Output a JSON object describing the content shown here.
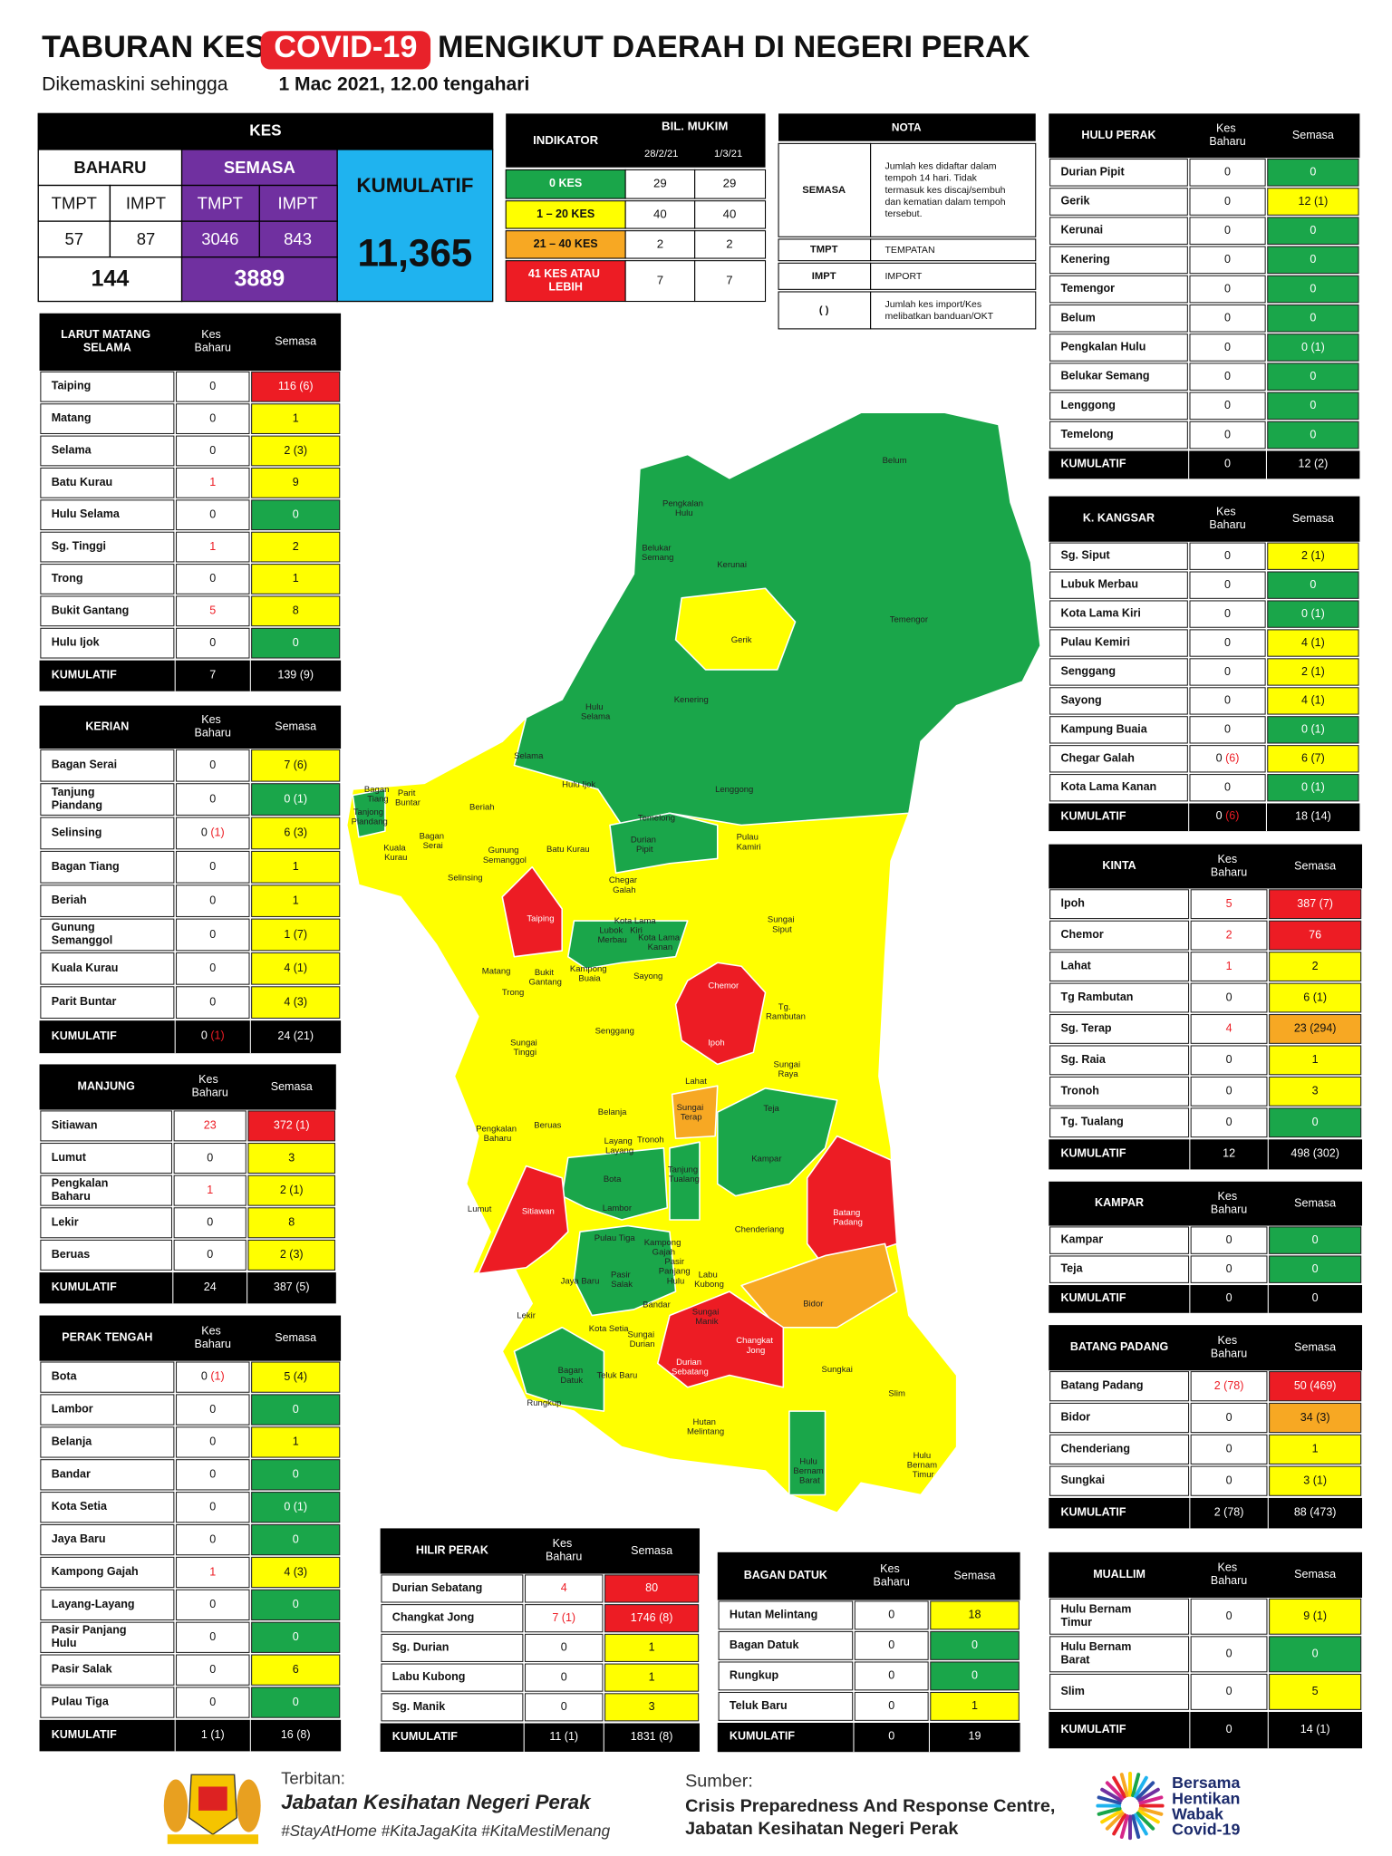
{
  "header": {
    "title": [
      "TABURAN KES",
      "COVID-19",
      "MENGIKUT DAERAH DI NEGERI PERAK"
    ],
    "subtitle": [
      "Dikemaskini sehingga",
      "1 Mac 2021, 12.00 tengahari"
    ]
  },
  "kes": {
    "title": "KES",
    "baharu": "BAHARU",
    "semasa": "SEMASA",
    "kumulatif": "KUMULATIF",
    "sub": [
      "TMPT",
      "IMPT",
      "TMPT",
      "IMPT"
    ],
    "values": [
      57,
      87,
      3046,
      843
    ],
    "baharu_total": 144,
    "semasa_total": 3889,
    "kumulatif_total": "11,365"
  },
  "indikator": {
    "headers": [
      "INDIKATOR",
      "BIL. MUKIM",
      "28/2/21",
      "1/3/21"
    ],
    "rows": [
      {
        "label": "0 KES",
        "color": "#1aa64a",
        "values": [
          29,
          29
        ]
      },
      {
        "label": "1 – 20 KES",
        "color": "#ffff00",
        "values": [
          40,
          40
        ]
      },
      {
        "label": "21 – 40 KES",
        "color": "#f7a823",
        "values": [
          2,
          2
        ]
      },
      {
        "label": "41 KES ATAU LEBIH",
        "color": "#ed1c24",
        "values": [
          7,
          7
        ]
      }
    ]
  },
  "nota": {
    "title": "NOTA",
    "rows": [
      [
        "SEMASA",
        "Jumlah kes didaftar dalam tempoh 14 hari. Tidak termasuk kes discaj/sembuh dan kematian dalam tempoh tersebut."
      ],
      [
        "TMPT",
        "TEMPATAN"
      ],
      [
        "IMPT",
        "IMPORT"
      ],
      [
        "( )",
        "Jumlah kes import/Kes melibatkan banduan/OKT"
      ]
    ]
  },
  "districts": [
    {
      "name": "LARUT MATANG SELAMA",
      "columns": [
        "Kes Baharu",
        "Semasa"
      ],
      "rows": [
        {
          "name": "Taiping",
          "baharu": "0",
          "semasa": "116 (6)",
          "color": "#ed1c24"
        },
        {
          "name": "Matang",
          "baharu": "0",
          "semasa": "1",
          "color": "#ffff00"
        },
        {
          "name": "Selama",
          "baharu": "0",
          "semasa": "2 (3)",
          "color": "#ffff00"
        },
        {
          "name": "Batu Kurau",
          "baharu": "1",
          "semasa": "9",
          "color": "#ffff00"
        },
        {
          "name": "Hulu Selama",
          "baharu": "0",
          "semasa": "0",
          "color": "#1aa64a"
        },
        {
          "name": "Sg. Tinggi",
          "baharu": "1",
          "semasa": "2",
          "color": "#ffff00"
        },
        {
          "name": "Trong",
          "baharu": "0",
          "semasa": "1",
          "color": "#ffff00"
        },
        {
          "name": "Bukit Gantang",
          "baharu": "5",
          "semasa": "8",
          "color": "#ffff00"
        },
        {
          "name": "Hulu Ijok",
          "baharu": "0",
          "semasa": "0",
          "color": "#1aa64a"
        }
      ],
      "total": {
        "label": "KUMULATIF",
        "baharu": "7",
        "semasa": "139 (9)"
      }
    },
    {
      "name": "KERIAN",
      "columns": [
        "Kes Baharu",
        "Semasa"
      ],
      "rows": [
        {
          "name": "Bagan Serai",
          "baharu": "0",
          "semasa": "7 (6)",
          "color": "#ffff00"
        },
        {
          "name": "Tanjung Piandang",
          "baharu": "0",
          "semasa": "0 (1)",
          "color": "#1aa64a"
        },
        {
          "name": "Selinsing",
          "baharu": "0 (1)",
          "semasa": "6 (3)",
          "color": "#ffff00"
        },
        {
          "name": "Bagan Tiang",
          "baharu": "0",
          "semasa": "1",
          "color": "#ffff00"
        },
        {
          "name": "Beriah",
          "baharu": "0",
          "semasa": "1",
          "color": "#ffff00"
        },
        {
          "name": "Gunung Semanggol",
          "baharu": "0",
          "semasa": "1 (7)",
          "color": "#ffff00"
        },
        {
          "name": "Kuala Kurau",
          "baharu": "0",
          "semasa": "4 (1)",
          "color": "#ffff00"
        },
        {
          "name": "Parit Buntar",
          "baharu": "0",
          "semasa": "4 (3)",
          "color": "#ffff00"
        }
      ],
      "total": {
        "label": "KUMULATIF",
        "baharu": "0 (1)",
        "semasa": "24 (21)"
      }
    },
    {
      "name": "MANJUNG",
      "columns": [
        "Kes Baharu",
        "Semasa"
      ],
      "rows": [
        {
          "name": "Sitiawan",
          "baharu": "23",
          "semasa": "372 (1)",
          "color": "#ed1c24"
        },
        {
          "name": "Lumut",
          "baharu": "0",
          "semasa": "3",
          "color": "#ffff00"
        },
        {
          "name": "Pengkalan Baharu",
          "baharu": "1",
          "semasa": "2 (1)",
          "color": "#ffff00"
        },
        {
          "name": "Lekir",
          "baharu": "0",
          "semasa": "8",
          "color": "#ffff00"
        },
        {
          "name": "Beruas",
          "baharu": "0",
          "semasa": "2 (3)",
          "color": "#ffff00"
        }
      ],
      "total": {
        "label": "KUMULATIF",
        "baharu": "24",
        "semasa": "387 (5)"
      }
    },
    {
      "name": "PERAK TENGAH",
      "columns": [
        "Kes Baharu",
        "Semasa"
      ],
      "rows": [
        {
          "name": "Bota",
          "baharu": "0 (1)",
          "semasa": "5 (4)",
          "color": "#ffff00"
        },
        {
          "name": "Lambor",
          "baharu": "0",
          "semasa": "0",
          "color": "#1aa64a"
        },
        {
          "name": "Belanja",
          "baharu": "0",
          "semasa": "1",
          "color": "#ffff00"
        },
        {
          "name": "Bandar",
          "baharu": "0",
          "semasa": "0",
          "color": "#1aa64a"
        },
        {
          "name": "Kota Setia",
          "baharu": "0",
          "semasa": "0 (1)",
          "color": "#1aa64a"
        },
        {
          "name": "Jaya Baru",
          "baharu": "0",
          "semasa": "0",
          "color": "#1aa64a"
        },
        {
          "name": "Kampong Gajah",
          "baharu": "1",
          "semasa": "4 (3)",
          "color": "#ffff00"
        },
        {
          "name": "Layang-Layang",
          "baharu": "0",
          "semasa": "0",
          "color": "#1aa64a"
        },
        {
          "name": "Pasir Panjang Hulu",
          "baharu": "0",
          "semasa": "0",
          "color": "#1aa64a"
        },
        {
          "name": "Pasir Salak",
          "baharu": "0",
          "semasa": "6",
          "color": "#ffff00"
        },
        {
          "name": "Pulau Tiga",
          "baharu": "0",
          "semasa": "0",
          "color": "#1aa64a"
        }
      ],
      "total": {
        "label": "KUMULATIF",
        "baharu": "1 (1)",
        "semasa": "16 (8)"
      }
    },
    {
      "name": "HULU PERAK",
      "columns": [
        "Kes Baharu",
        "Semasa"
      ],
      "rows": [
        {
          "name": "Durian Pipit",
          "baharu": "0",
          "semasa": "0",
          "color": "#1aa64a"
        },
        {
          "name": "Gerik",
          "baharu": "0",
          "semasa": "12 (1)",
          "color": "#ffff00"
        },
        {
          "name": "Kerunai",
          "baharu": "0",
          "semasa": "0",
          "color": "#1aa64a"
        },
        {
          "name": "Kenering",
          "baharu": "0",
          "semasa": "0",
          "color": "#1aa64a"
        },
        {
          "name": "Temengor",
          "baharu": "0",
          "semasa": "0",
          "color": "#1aa64a"
        },
        {
          "name": "Belum",
          "baharu": "0",
          "semasa": "0",
          "color": "#1aa64a"
        },
        {
          "name": "Pengkalan Hulu",
          "baharu": "0",
          "semasa": "0 (1)",
          "color": "#1aa64a"
        },
        {
          "name": "Belukar Semang",
          "baharu": "0",
          "semasa": "0",
          "color": "#1aa64a"
        },
        {
          "name": "Lenggong",
          "baharu": "0",
          "semasa": "0",
          "color": "#1aa64a"
        },
        {
          "name": "Temelong",
          "baharu": "0",
          "semasa": "0",
          "color": "#1aa64a"
        }
      ],
      "total": {
        "label": "KUMULATIF",
        "baharu": "0",
        "semasa": "12 (2)"
      }
    },
    {
      "name": "K. KANGSAR",
      "columns": [
        "Kes Baharu",
        "Semasa"
      ],
      "rows": [
        {
          "name": "Sg. Siput",
          "baharu": "0",
          "semasa": "2 (1)",
          "color": "#ffff00"
        },
        {
          "name": "Lubuk Merbau",
          "baharu": "0",
          "semasa": "0",
          "color": "#1aa64a"
        },
        {
          "name": "Kota Lama Kiri",
          "baharu": "0",
          "semasa": "0 (1)",
          "color": "#1aa64a"
        },
        {
          "name": "Pulau Kemiri",
          "baharu": "0",
          "semasa": "4 (1)",
          "color": "#ffff00"
        },
        {
          "name": "Senggang",
          "baharu": "0",
          "semasa": "2 (1)",
          "color": "#ffff00"
        },
        {
          "name": "Sayong",
          "baharu": "0",
          "semasa": "4 (1)",
          "color": "#ffff00"
        },
        {
          "name": "Kampung Buaia",
          "baharu": "0",
          "semasa": "0 (1)",
          "color": "#1aa64a"
        },
        {
          "name": "Chegar Galah",
          "baharu": "0 (6)",
          "semasa": "6 (7)",
          "color": "#ffff00"
        },
        {
          "name": "Kota Lama Kanan",
          "baharu": "0",
          "semasa": "0 (1)",
          "color": "#1aa64a"
        }
      ],
      "total": {
        "label": "KUMULATIF",
        "baharu": "0 (6)",
        "semasa": "18 (14)"
      }
    },
    {
      "name": "KINTA",
      "columns": [
        "Kes Baharu",
        "Semasa"
      ],
      "rows": [
        {
          "name": "Ipoh",
          "baharu": "5",
          "semasa": "387 (7)",
          "color": "#ed1c24"
        },
        {
          "name": "Chemor",
          "baharu": "2",
          "semasa": "76",
          "color": "#ed1c24"
        },
        {
          "name": "Lahat",
          "baharu": "1",
          "semasa": "2",
          "color": "#ffff00"
        },
        {
          "name": "Tg Rambutan",
          "baharu": "0",
          "semasa": "6 (1)",
          "color": "#ffff00"
        },
        {
          "name": "Sg. Terap",
          "baharu": "4",
          "semasa": "23 (294)",
          "color": "#f7a823"
        },
        {
          "name": "Sg. Raia",
          "baharu": "0",
          "semasa": "1",
          "color": "#ffff00"
        },
        {
          "name": "Tronoh",
          "baharu": "0",
          "semasa": "3",
          "color": "#ffff00"
        },
        {
          "name": "Tg. Tualang",
          "baharu": "0",
          "semasa": "0",
          "color": "#1aa64a"
        }
      ],
      "total": {
        "label": "KUMULATIF",
        "baharu": "12",
        "semasa": "498 (302)"
      }
    },
    {
      "name": "KAMPAR",
      "columns": [
        "Kes Baharu",
        "Semasa"
      ],
      "rows": [
        {
          "name": "Kampar",
          "baharu": "0",
          "semasa": "0",
          "color": "#1aa64a"
        },
        {
          "name": "Teja",
          "baharu": "0",
          "semasa": "0",
          "color": "#1aa64a"
        }
      ],
      "total": {
        "label": "KUMULATIF",
        "baharu": "0",
        "semasa": "0"
      }
    },
    {
      "name": "BATANG PADANG",
      "columns": [
        "Kes Baharu",
        "Semasa"
      ],
      "rows": [
        {
          "name": "Batang Padang",
          "baharu": "2 (78)",
          "semasa": "50 (469)",
          "color": "#ed1c24"
        },
        {
          "name": "Bidor",
          "baharu": "0",
          "semasa": "34 (3)",
          "color": "#f7a823"
        },
        {
          "name": "Chenderiang",
          "baharu": "0",
          "semasa": "1",
          "color": "#ffff00"
        },
        {
          "name": "Sungkai",
          "baharu": "0",
          "semasa": "3 (1)",
          "color": "#ffff00"
        }
      ],
      "total": {
        "label": "KUMULATIF",
        "baharu": "2 (78)",
        "semasa": "88 (473)"
      }
    },
    {
      "name": "MUALLIM",
      "columns": [
        "Kes Baharu",
        "Semasa"
      ],
      "rows": [
        {
          "name": "Hulu Bernam Timur",
          "baharu": "0",
          "semasa": "9 (1)",
          "color": "#ffff00"
        },
        {
          "name": "Hulu Bernam Barat",
          "baharu": "0",
          "semasa": "0",
          "color": "#1aa64a"
        },
        {
          "name": "Slim",
          "baharu": "0",
          "semasa": "5",
          "color": "#ffff00"
        }
      ],
      "total": {
        "label": "KUMULATIF",
        "baharu": "0",
        "semasa": "14 (1)"
      }
    },
    {
      "name": "HILIR PERAK",
      "columns": [
        "Kes Baharu",
        "Semasa"
      ],
      "rows": [
        {
          "name": "Durian Sebatang",
          "baharu": "4",
          "semasa": "80",
          "color": "#ed1c24"
        },
        {
          "name": "Changkat Jong",
          "baharu": "7 (1)",
          "semasa": "1746 (8)",
          "color": "#ed1c24"
        },
        {
          "name": "Sg. Durian",
          "baharu": "0",
          "semasa": "1",
          "color": "#ffff00"
        },
        {
          "name": "Labu Kubong",
          "baharu": "0",
          "semasa": "1",
          "color": "#ffff00"
        },
        {
          "name": "Sg. Manik",
          "baharu": "0",
          "semasa": "3",
          "color": "#ffff00"
        }
      ],
      "total": {
        "label": "KUMULATIF",
        "baharu": "11 (1)",
        "semasa": "1831 (8)"
      }
    },
    {
      "name": "BAGAN DATUK",
      "columns": [
        "Kes Baharu",
        "Semasa"
      ],
      "rows": [
        {
          "name": "Hutan Melintang",
          "baharu": "0",
          "semasa": "18",
          "color": "#ffff00"
        },
        {
          "name": "Bagan Datuk",
          "baharu": "0",
          "semasa": "0",
          "color": "#1aa64a"
        },
        {
          "name": "Rungkup",
          "baharu": "0",
          "semasa": "0",
          "color": "#1aa64a"
        },
        {
          "name": "Teluk Baru",
          "baharu": "0",
          "semasa": "1",
          "color": "#ffff00"
        }
      ],
      "total": {
        "label": "KUMULATIF",
        "baharu": "0",
        "semasa": "19"
      }
    }
  ],
  "map": {
    "labels": [
      "Belum",
      "Pengkalan Hulu",
      "Belukar Semang",
      "Kerunai",
      "Temengor",
      "Gerik",
      "Hulu Selama",
      "Kenering",
      "Selama",
      "Hulu Ijok",
      "Lenggong",
      "Bagan Tiang",
      "Parit Buntar",
      "Tanjong Piandang",
      "Beriah",
      "Kuala Kurau",
      "Bagan Serai",
      "Gunung Semanggol",
      "Batu Kurau",
      "Temelong",
      "Durian Pipit",
      "Pulau Kamiri",
      "Selinsing",
      "Chegar Galah",
      "Taiping",
      "Sungai Siput",
      "Lubok Merbau",
      "Kota Lama Kiri",
      "Kota Lama Kanan",
      "Matang",
      "Bukit Gantang",
      "Kampong Buaia",
      "Sayong",
      "Chemor",
      "Trong",
      "Tg. Rambutan",
      "Senggang",
      "Sungai Tinggi",
      "Ipoh",
      "Sungai Raya",
      "Lahat",
      "Belanja",
      "Sungai Terap",
      "Teja",
      "Pengkalan Baharu",
      "Beruas",
      "Layang Layang",
      "Tronoh",
      "Tanjung Tualang",
      "Kampar",
      "Bota",
      "Lumut",
      "Sitiawan",
      "Lambor",
      "Batang Padang",
      "Chenderiang",
      "Pulau Tiga",
      "Kampong Gajah",
      "Pasir Panjang Hulu",
      "Jaya Baru",
      "Pasir Salak",
      "Labu Kubong",
      "Bidor",
      "Bandar",
      "Lekir",
      "Sungai Manik",
      "Kota Setia",
      "Sungai Durian",
      "Changkat Jong",
      "Bagan Datuk",
      "Teluk Baru",
      "Durian Sebatang",
      "Sungkai",
      "Rungkup",
      "Slim",
      "Hutan Melintang",
      "Hulu Bernam Barat",
      "Hulu Bernam Timur"
    ]
  },
  "footer": {
    "terbitan": "Terbitan:",
    "publisher": "Jabatan Kesihatan Negeri Perak",
    "hashtags": "#StayAtHome #KitaJagaKita #KitaMestiMenang",
    "sumber": "Sumber:",
    "source": [
      "Crisis Preparedness And Response Centre,",
      "Jabatan Kesihatan Negeri Perak"
    ],
    "campaign": "Bersama Hentikan Wabak Covid-19"
  }
}
